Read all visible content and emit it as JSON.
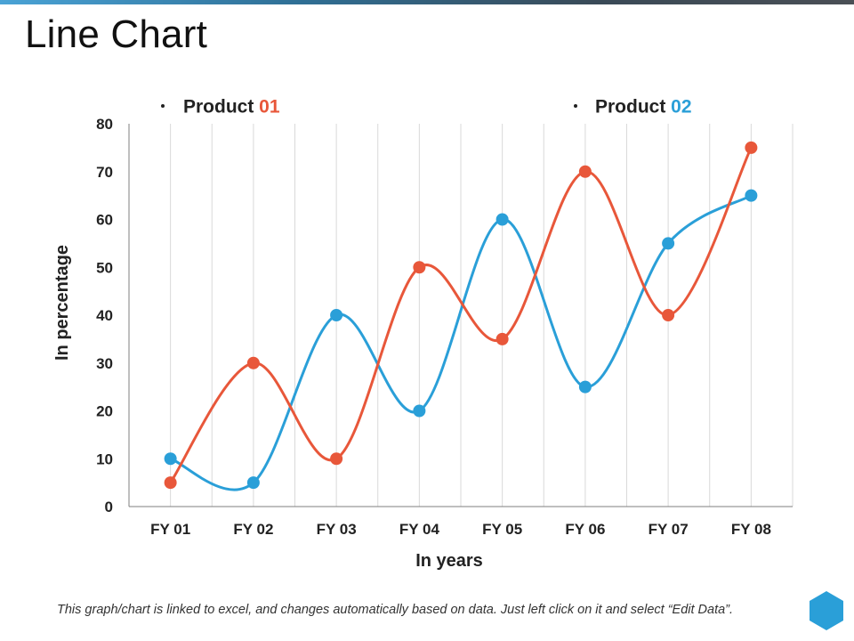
{
  "page": {
    "title": "Line Chart",
    "footer_note": "This graph/chart is linked to excel, and changes automatically based on data. Just left click on it and select “Edit Data”."
  },
  "colors": {
    "product01": "#E8573A",
    "product02": "#2A9FD8",
    "grid": "#d9d9d9",
    "axis": "#7f7f7f",
    "hex_icon": "#2A9FD8"
  },
  "chart_data": {
    "type": "line",
    "title": "",
    "xlabel": "In years",
    "ylabel": "In percentage",
    "categories": [
      "FY 01",
      "FY 02",
      "FY 03",
      "FY 04",
      "FY 05",
      "FY 06",
      "FY 07",
      "FY 08"
    ],
    "y_ticks": [
      "0",
      "10",
      "20",
      "30",
      "40",
      "50",
      "60",
      "70",
      "80"
    ],
    "ylim": [
      0,
      80
    ],
    "smooth": true,
    "legend_position": "top",
    "series": [
      {
        "name": "Product 01",
        "name_prefix": "Product ",
        "name_suffix": "01",
        "color": "#E8573A",
        "values": [
          5,
          30,
          10,
          50,
          35,
          70,
          40,
          75
        ]
      },
      {
        "name": "Product 02",
        "name_prefix": "Product ",
        "name_suffix": "02",
        "color": "#2A9FD8",
        "values": [
          10,
          5,
          40,
          20,
          60,
          25,
          55,
          65
        ]
      }
    ]
  }
}
